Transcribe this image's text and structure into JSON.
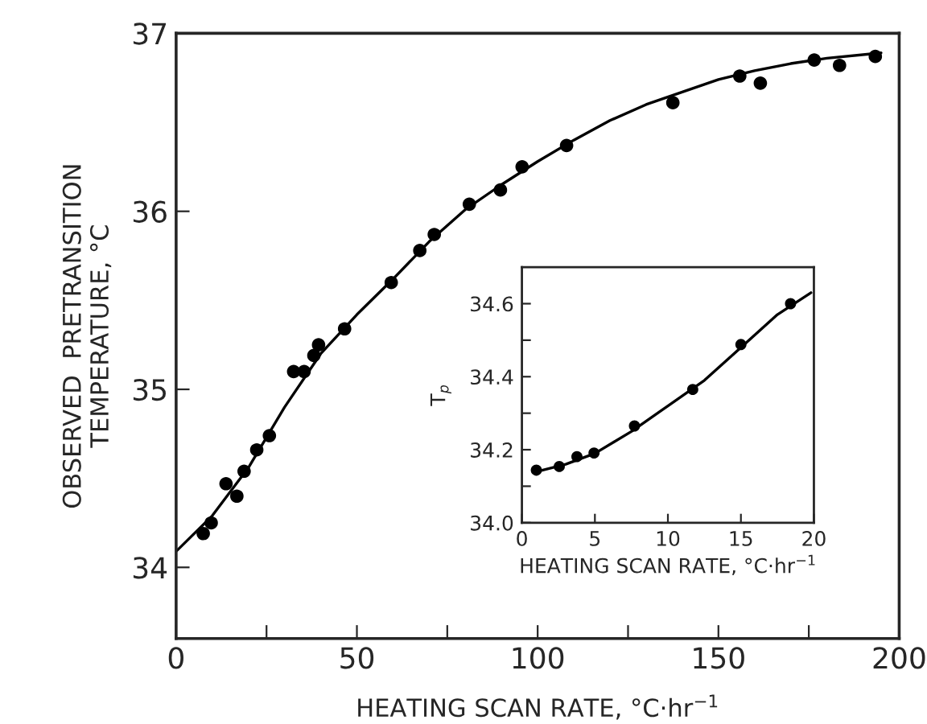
{
  "chart_data": [
    {
      "type": "scatter",
      "xlabel": "HEATING SCAN RATE, °C·hr$^{−1}$",
      "ylabel": "OBSERVED  PRETRANSITION\nTEMPERATURE, °C",
      "xlim": [
        0,
        200
      ],
      "ylim": [
        33.6,
        37
      ],
      "xticks": [
        0,
        {
          "value": 25,
          "label": null
        },
        50,
        {
          "value": 75,
          "label": null
        },
        100,
        {
          "value": 125,
          "label": null
        },
        150,
        {
          "value": 175,
          "label": null
        },
        200
      ],
      "yticks": [
        34,
        35,
        36,
        37
      ],
      "grid": false,
      "legend": false,
      "series": [
        {
          "color": "#000000",
          "marker": "circle",
          "x": [
            7.5,
            9.7,
            13.8,
            16.8,
            18.8,
            22.3,
            25.8,
            32.5,
            35.4,
            38.1,
            39.4,
            46.6,
            59.5,
            67.4,
            71.4,
            81.1,
            89.7,
            95.7,
            108,
            137.4,
            155.9,
            161.6,
            176.5,
            183.5,
            193.4
          ],
          "values": [
            34.19,
            34.25,
            34.47,
            34.4,
            34.54,
            34.66,
            34.74,
            35.1,
            35.1,
            35.19,
            35.25,
            35.34,
            35.6,
            35.78,
            35.87,
            36.04,
            36.12,
            36.25,
            36.37,
            36.61,
            36.76,
            36.72,
            36.85,
            36.82,
            36.87
          ]
        },
        {
          "type": "line",
          "color": "#000000",
          "line_style": "solid",
          "x": [
            0,
            10,
            20,
            30,
            40,
            50,
            60,
            70,
            80,
            90,
            100,
            110,
            120,
            130,
            140,
            150,
            160,
            170,
            180,
            195
          ],
          "values": [
            34.09,
            34.29,
            34.56,
            34.9,
            35.2,
            35.42,
            35.62,
            35.83,
            36.01,
            36.15,
            36.28,
            36.4,
            36.51,
            36.6,
            36.67,
            36.74,
            36.79,
            36.83,
            36.86,
            36.89
          ]
        }
      ]
    },
    {
      "type": "scatter",
      "xlabel": "HEATING SCAN RATE, °C·hr$^{−1}$",
      "ylabel": "T$_{p}$",
      "xlim": [
        0,
        20
      ],
      "ylim": [
        34.0,
        34.7
      ],
      "xticks": [
        0,
        5,
        10,
        15,
        20
      ],
      "yticks": [
        {
          "value": 34.0,
          "label": "34.0"
        },
        {
          "value": 34.1,
          "label": null
        },
        {
          "value": 34.2,
          "label": "34.2"
        },
        {
          "value": 34.3,
          "label": null
        },
        {
          "value": 34.4,
          "label": "34.4"
        },
        {
          "value": 34.5,
          "label": null
        },
        {
          "value": 34.6,
          "label": "34.6"
        }
      ],
      "grid": false,
      "legend": false,
      "series": [
        {
          "color": "#000000",
          "marker": "circle",
          "x": [
            0.99,
            2.56,
            3.77,
            4.94,
            7.71,
            11.7,
            15.0,
            18.4
          ],
          "values": [
            34.144,
            34.154,
            34.181,
            34.191,
            34.265,
            34.365,
            34.488,
            34.6
          ]
        },
        {
          "type": "line",
          "color": "#000000",
          "line_style": "solid",
          "x": [
            1,
            3,
            5,
            7.5,
            10,
            12.5,
            15,
            17.5,
            19.8
          ],
          "values": [
            34.14,
            34.16,
            34.19,
            34.25,
            34.32,
            34.39,
            34.48,
            34.57,
            34.63
          ]
        }
      ]
    }
  ]
}
